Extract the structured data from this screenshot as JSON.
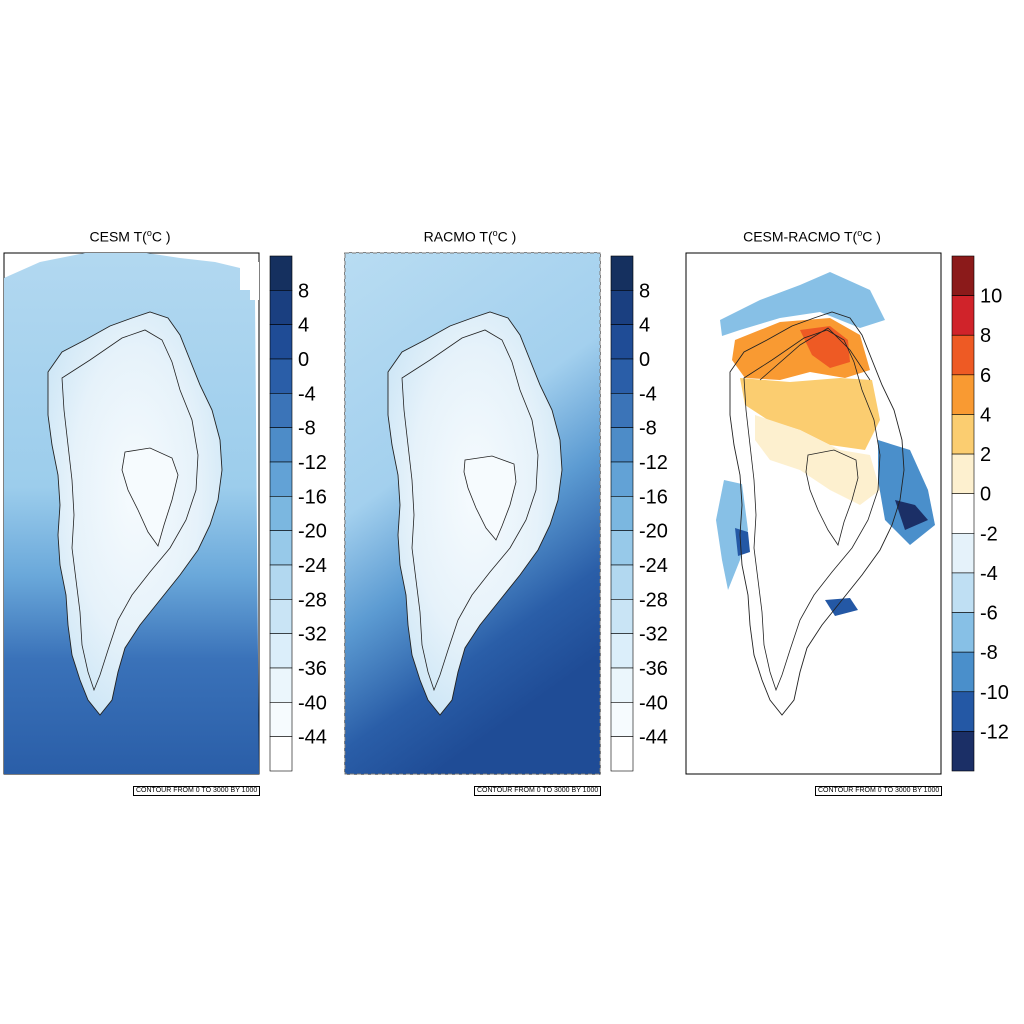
{
  "panels": [
    {
      "title_main": "CESM T(",
      "title_unit_sup": "o",
      "title_unit_tail": "C )",
      "footer": "CONTOUR FROM 0 TO 3000 BY 1000"
    },
    {
      "title_main": "RACMO T(",
      "title_unit_sup": "o",
      "title_unit_tail": "C )",
      "footer": "CONTOUR FROM 0 TO 3000 BY 1000"
    },
    {
      "title_main": "CESM-RACMO T(",
      "title_unit_sup": "o",
      "title_unit_tail": "C )",
      "footer": "CONTOUR FROM 0 TO 3000 BY 1000"
    }
  ],
  "colorbars": {
    "temperature": {
      "labels": [
        "8",
        "4",
        "0",
        "-4",
        "-8",
        "-12",
        "-16",
        "-20",
        "-24",
        "-28",
        "-32",
        "-36",
        "-40",
        "-44"
      ],
      "colors": [
        "#15305f",
        "#1a3f80",
        "#1f4c96",
        "#2a5ea8",
        "#3b74b8",
        "#4d8cc8",
        "#62a2d6",
        "#7bb7e0",
        "#97c9e9",
        "#b2d8f0",
        "#c9e4f5",
        "#dbeefa",
        "#ebf6fc",
        "#f6fbfe",
        "#ffffff"
      ]
    },
    "difference": {
      "labels": [
        "10",
        "8",
        "6",
        "4",
        "2",
        "0",
        "-2",
        "-4",
        "-6",
        "-8",
        "-10",
        "-12"
      ],
      "colors": [
        "#8b1a1a",
        "#d0232a",
        "#ee5a24",
        "#f99a32",
        "#fbcd70",
        "#fdf0cf",
        "#ffffff",
        "#e5f2fa",
        "#bfdff3",
        "#87c0e6",
        "#4a8fcb",
        "#2458a5",
        "#1b2f66"
      ]
    }
  }
}
